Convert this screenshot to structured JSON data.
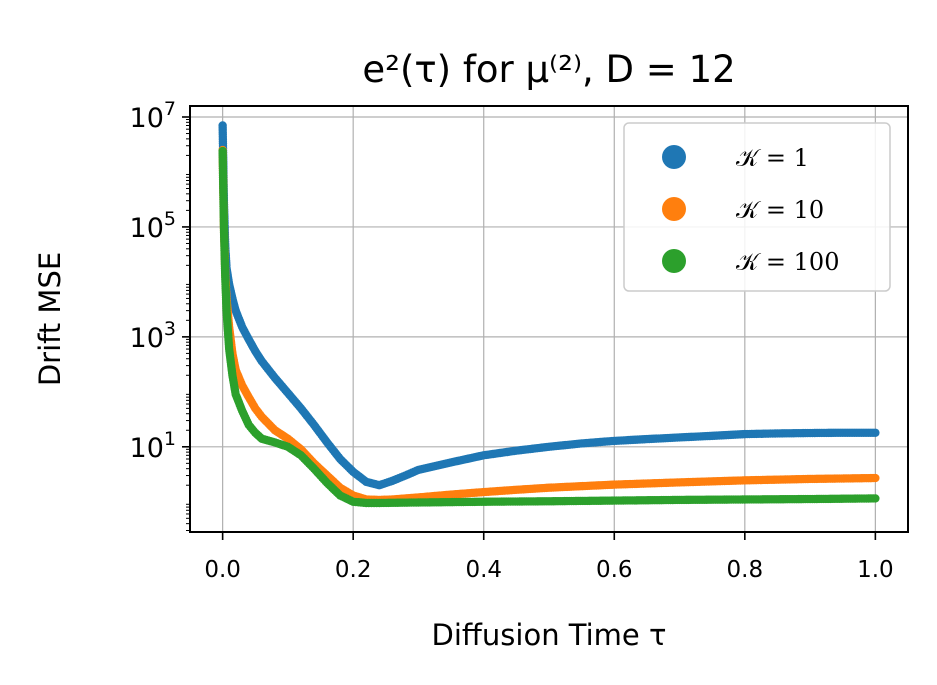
{
  "chart_data": {
    "type": "scatter",
    "title": "e²(τ) for μ⁽²⁾, D = 12",
    "xlabel": "Diffusion Time τ",
    "ylabel": "Drift MSE",
    "xlim": [
      -0.05,
      1.05
    ],
    "ylim_log10": [
      -0.55,
      7.2
    ],
    "yscale": "log",
    "grid": true,
    "legend_position": "top-right",
    "x_ticks": [
      {
        "value": 0.0,
        "label": "0.0"
      },
      {
        "value": 0.2,
        "label": "0.2"
      },
      {
        "value": 0.4,
        "label": "0.4"
      },
      {
        "value": 0.6,
        "label": "0.6"
      },
      {
        "value": 0.8,
        "label": "0.8"
      },
      {
        "value": 1.0,
        "label": "1.0"
      }
    ],
    "y_ticks": [
      {
        "exp": 1,
        "base": "10",
        "sup": "1"
      },
      {
        "exp": 3,
        "base": "10",
        "sup": "3"
      },
      {
        "exp": 5,
        "base": "10",
        "sup": "5"
      },
      {
        "exp": 7,
        "base": "10",
        "sup": "7"
      }
    ],
    "series": [
      {
        "name": "𝒦 = 1",
        "color": "#1f77b4",
        "points": [
          [
            0.0,
            7000000
          ],
          [
            0.002,
            280000
          ],
          [
            0.004,
            45000
          ],
          [
            0.006,
            18000
          ],
          [
            0.01,
            9000
          ],
          [
            0.015,
            5000
          ],
          [
            0.02,
            3000
          ],
          [
            0.03,
            1500
          ],
          [
            0.04,
            900
          ],
          [
            0.05,
            550
          ],
          [
            0.06,
            360
          ],
          [
            0.08,
            180
          ],
          [
            0.1,
            95
          ],
          [
            0.12,
            50
          ],
          [
            0.14,
            25
          ],
          [
            0.16,
            12
          ],
          [
            0.18,
            6
          ],
          [
            0.2,
            3.5
          ],
          [
            0.22,
            2.3
          ],
          [
            0.24,
            2.0
          ],
          [
            0.26,
            2.4
          ],
          [
            0.28,
            3.0
          ],
          [
            0.3,
            3.8
          ],
          [
            0.35,
            5.2
          ],
          [
            0.4,
            7.0
          ],
          [
            0.45,
            8.5
          ],
          [
            0.5,
            10.0
          ],
          [
            0.55,
            11.5
          ],
          [
            0.6,
            12.8
          ],
          [
            0.65,
            13.8
          ],
          [
            0.7,
            14.8
          ],
          [
            0.75,
            15.8
          ],
          [
            0.8,
            17.0
          ],
          [
            0.85,
            17.5
          ],
          [
            0.9,
            17.8
          ],
          [
            0.95,
            18.0
          ],
          [
            1.0,
            18.0
          ]
        ]
      },
      {
        "name": "𝒦 = 10",
        "color": "#ff7f0e",
        "points": [
          [
            0.0,
            2500000
          ],
          [
            0.002,
            100000
          ],
          [
            0.004,
            15000
          ],
          [
            0.006,
            5000
          ],
          [
            0.01,
            1500
          ],
          [
            0.015,
            500
          ],
          [
            0.02,
            250
          ],
          [
            0.03,
            130
          ],
          [
            0.04,
            80
          ],
          [
            0.05,
            50
          ],
          [
            0.06,
            35
          ],
          [
            0.08,
            20
          ],
          [
            0.1,
            14
          ],
          [
            0.12,
            9
          ],
          [
            0.14,
            5
          ],
          [
            0.16,
            3
          ],
          [
            0.18,
            1.8
          ],
          [
            0.2,
            1.3
          ],
          [
            0.22,
            1.1
          ],
          [
            0.24,
            1.08
          ],
          [
            0.26,
            1.1
          ],
          [
            0.3,
            1.2
          ],
          [
            0.35,
            1.35
          ],
          [
            0.4,
            1.5
          ],
          [
            0.45,
            1.65
          ],
          [
            0.5,
            1.8
          ],
          [
            0.6,
            2.05
          ],
          [
            0.7,
            2.25
          ],
          [
            0.8,
            2.45
          ],
          [
            0.9,
            2.6
          ],
          [
            1.0,
            2.7
          ]
        ]
      },
      {
        "name": "𝒦 = 100",
        "color": "#2ca02c",
        "points": [
          [
            0.0,
            2400000
          ],
          [
            0.002,
            95000
          ],
          [
            0.004,
            12000
          ],
          [
            0.006,
            3000
          ],
          [
            0.01,
            600
          ],
          [
            0.015,
            200
          ],
          [
            0.02,
            90
          ],
          [
            0.03,
            45
          ],
          [
            0.04,
            25
          ],
          [
            0.05,
            18
          ],
          [
            0.06,
            14
          ],
          [
            0.08,
            12
          ],
          [
            0.1,
            10
          ],
          [
            0.12,
            7
          ],
          [
            0.14,
            4
          ],
          [
            0.16,
            2.2
          ],
          [
            0.18,
            1.3
          ],
          [
            0.2,
            1.0
          ],
          [
            0.22,
            0.95
          ],
          [
            0.24,
            0.95
          ],
          [
            0.3,
            0.97
          ],
          [
            0.4,
            1.0
          ],
          [
            0.5,
            1.02
          ],
          [
            0.6,
            1.05
          ],
          [
            0.7,
            1.08
          ],
          [
            0.8,
            1.1
          ],
          [
            0.9,
            1.12
          ],
          [
            1.0,
            1.15
          ]
        ]
      }
    ]
  }
}
